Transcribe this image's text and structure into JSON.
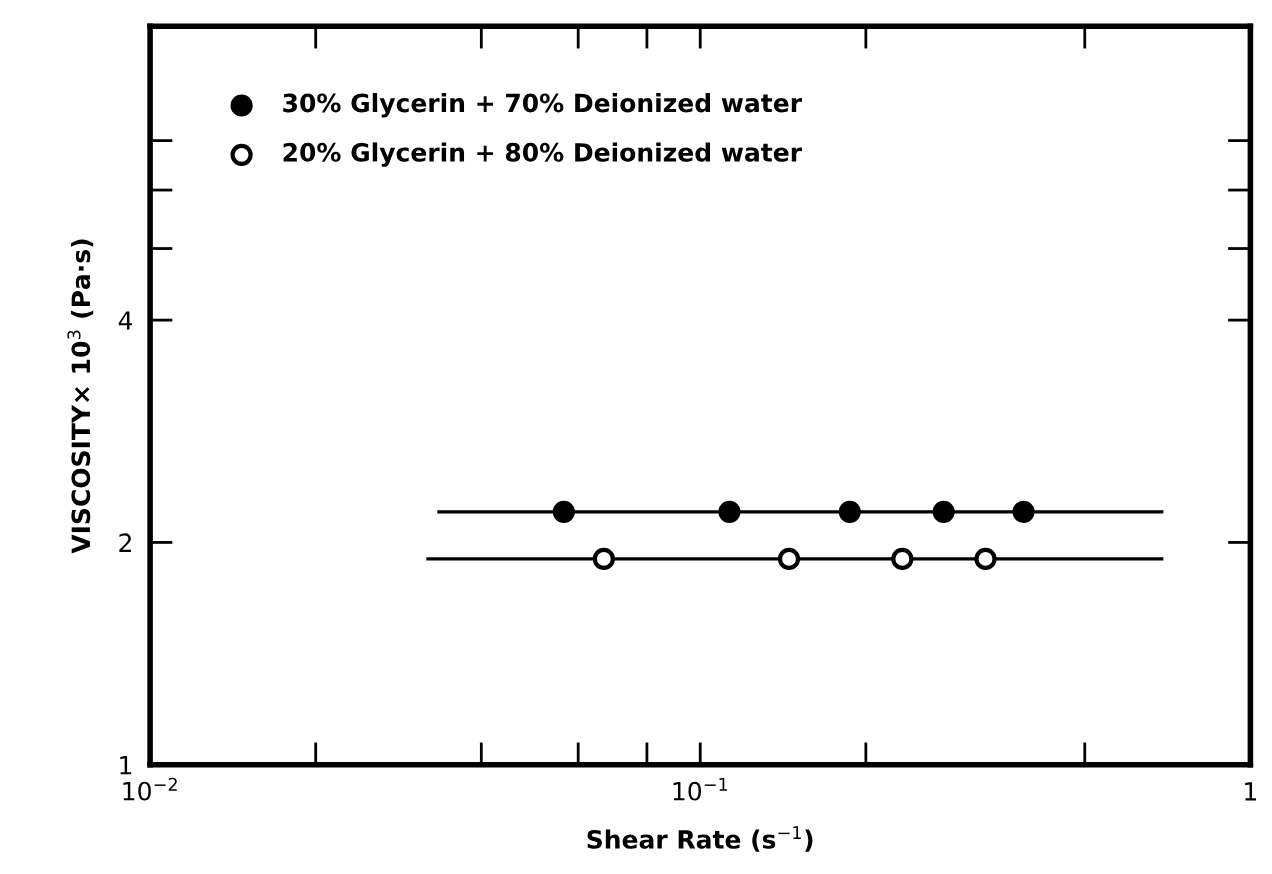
{
  "chart_data": {
    "type": "scatter",
    "xlabel": "Shear Rate (s$^{−1}$)",
    "ylabel": "VISCOSITY× 10$^{3}$ (Pa·s)",
    "log": "xy",
    "xlim": [
      0.01,
      1
    ],
    "ylim": [
      1,
      10
    ],
    "xticks": [
      {
        "value": 0.01,
        "label": "10$^{−2}$"
      },
      {
        "value": 0.02,
        "label": null
      },
      {
        "value": 0.04,
        "label": null
      },
      {
        "value": 0.06,
        "label": null
      },
      {
        "value": 0.08,
        "label": null
      },
      {
        "value": 0.1,
        "label": "10$^{−1}$"
      },
      {
        "value": 0.2,
        "label": null
      },
      {
        "value": 0.5,
        "label": null
      },
      1
    ],
    "yticks": [
      1,
      2,
      4,
      {
        "value": 5,
        "label": null
      },
      {
        "value": 6,
        "label": null
      },
      {
        "value": 7,
        "label": null
      }
    ],
    "grid": false,
    "legend": "top left",
    "series": [
      {
        "name": "30% Glycerin + 70% Deionized water",
        "marker": "circle",
        "color": "#000000",
        "x": [
          0.0565,
          0.113,
          0.187,
          0.277,
          0.387
        ],
        "values": [
          2.2,
          2.2,
          2.2,
          2.2,
          2.2
        ]
      },
      {
        "name": "20% Glycerin + 80% Deionized water",
        "marker": "circle",
        "color": "#ffffff",
        "x": [
          0.0668,
          0.145,
          0.233,
          0.33
        ],
        "values": [
          1.9,
          1.9,
          1.9,
          1.9
        ]
      },
      {
        "type": "line",
        "color": "#000000",
        "x": [
          0.0335,
          0.69
        ],
        "values": [
          2.2,
          2.2
        ]
      },
      {
        "type": "line",
        "color": "#000000",
        "x": [
          0.032,
          0.69
        ],
        "values": [
          1.9,
          1.9
        ]
      }
    ]
  }
}
